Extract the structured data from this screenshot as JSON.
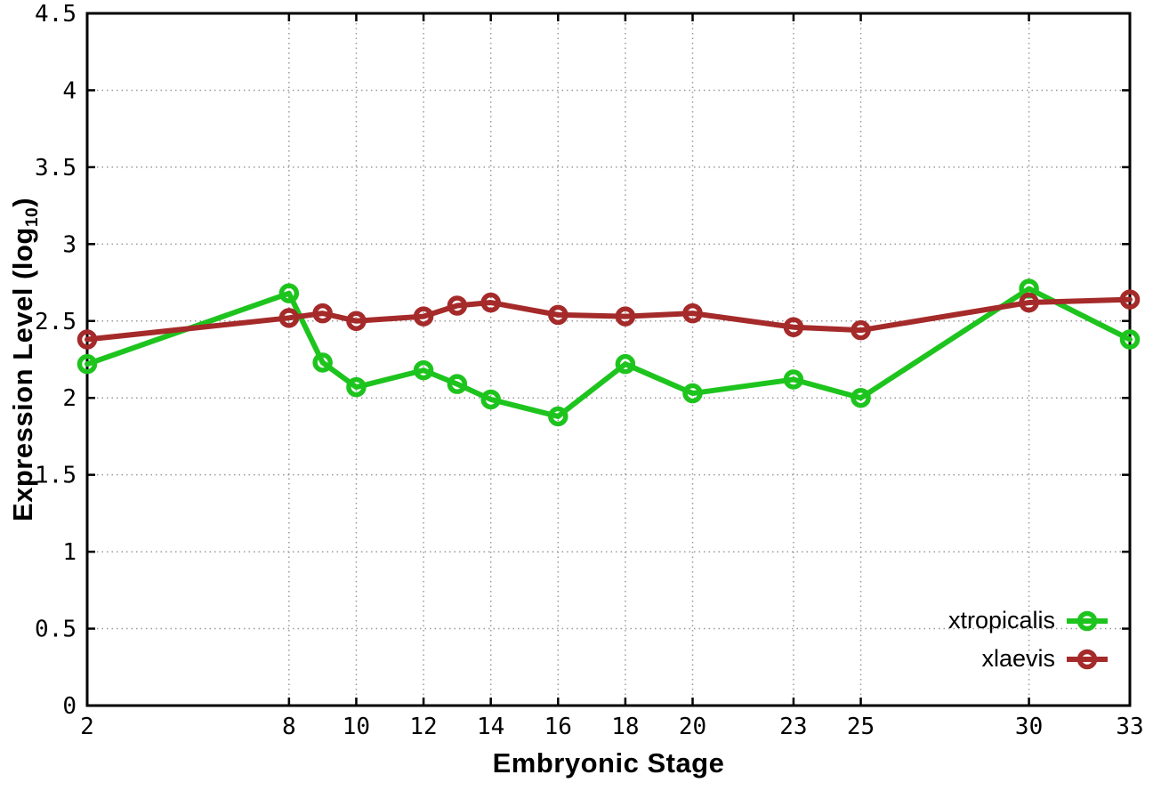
{
  "chart_data": {
    "type": "line",
    "title": "",
    "xlabel": "Embryonic Stage",
    "ylabel_prefix": "Expression Level (log",
    "ylabel_sub": "10",
    "ylabel_suffix": ")",
    "x": [
      2,
      8,
      9,
      10,
      12,
      13,
      14,
      16,
      18,
      20,
      23,
      25,
      30,
      33
    ],
    "series": [
      {
        "name": "xtropicalis",
        "color": "#1ec41e",
        "values": [
          2.22,
          2.68,
          2.23,
          2.07,
          2.18,
          2.09,
          1.99,
          1.88,
          2.22,
          2.03,
          2.12,
          2.0,
          2.71,
          2.38
        ]
      },
      {
        "name": "xlaevis",
        "color": "#a52a2a",
        "values": [
          2.38,
          2.52,
          2.55,
          2.5,
          2.53,
          2.6,
          2.62,
          2.54,
          2.53,
          2.55,
          2.46,
          2.44,
          2.62,
          2.64
        ]
      }
    ],
    "xlim": [
      2,
      33
    ],
    "ylim": [
      0,
      4.5
    ],
    "xticks": {
      "values": [
        2,
        8,
        10,
        12,
        14,
        16,
        18,
        20,
        23,
        25,
        30,
        33
      ],
      "labels": [
        "2",
        "8",
        "10",
        "12",
        "14",
        "16",
        "18",
        "20",
        "23",
        "25",
        "30",
        "33"
      ]
    },
    "yticks": {
      "values": [
        0,
        0.5,
        1,
        1.5,
        2,
        2.5,
        3,
        3.5,
        4,
        4.5
      ],
      "labels": [
        "0",
        "0.5",
        "1",
        "1.5",
        "2",
        "2.5",
        "3",
        "3.5",
        "4",
        "4.5"
      ]
    },
    "grid": true,
    "legend_position": "bottom-right",
    "colors": {
      "grid": "#9a9a9a",
      "axis": "#000000",
      "background": "#ffffff"
    }
  }
}
